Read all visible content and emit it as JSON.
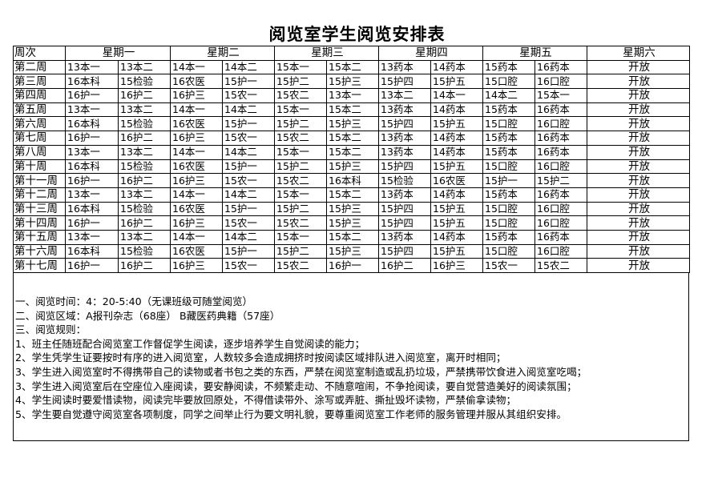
{
  "title": "阅览室学生阅览安排表",
  "header": {
    "week_label": "周次",
    "days": [
      "星期一",
      "星期二",
      "星期三",
      "星期四",
      "星期五",
      "星期六"
    ]
  },
  "rows": [
    {
      "week": "第二周",
      "cells": [
        "13本一",
        "13本二",
        "14本一",
        "14本二",
        "15本一",
        "15本二",
        "13药本",
        "14药本",
        "15药本",
        "16药本"
      ],
      "sat": "开放"
    },
    {
      "week": "第三周",
      "cells": [
        "16本科",
        "15检验",
        "16农医",
        "15护一",
        "15护二",
        "15护三",
        "15护四",
        "15护五",
        "15口腔",
        "16口腔"
      ],
      "sat": "开放"
    },
    {
      "week": "第四周",
      "cells": [
        "16护一",
        "16护二",
        "16护三",
        "15农一",
        "15农二",
        "13本一",
        "13本二",
        "14本一",
        "14本二",
        "15本一"
      ],
      "sat": "开放"
    },
    {
      "week": "第五周",
      "cells": [
        "13本一",
        "13本二",
        "14本一",
        "14本二",
        "15本一",
        "15本二",
        "13药本",
        "14药本",
        "15药本",
        "16药本"
      ],
      "sat": "开放"
    },
    {
      "week": "第六周",
      "cells": [
        "16本科",
        "15检验",
        "16农医",
        "15护一",
        "15护二",
        "15护三",
        "15护四",
        "15护五",
        "15口腔",
        "16口腔"
      ],
      "sat": "开放"
    },
    {
      "week": "第七周",
      "cells": [
        "16护一",
        "16护二",
        "16护三",
        "15农一",
        "15农二",
        "15本二",
        "13药本",
        "14药本",
        "15药本",
        "16药本"
      ],
      "sat": "开放"
    },
    {
      "week": "第八周",
      "cells": [
        "13本一",
        "13本二",
        "14本一",
        "14本二",
        "15本一",
        "15本二",
        "13药本",
        "14药本",
        "15药本",
        "16药本"
      ],
      "sat": "开放"
    },
    {
      "week": "第十周",
      "cells": [
        "16本科",
        "15检验",
        "16农医",
        "15护一",
        "15护二",
        "15护三",
        "15护四",
        "15护五",
        "15口腔",
        "16口腔"
      ],
      "sat": "开放"
    },
    {
      "week": "第十一周",
      "cells": [
        "16护一",
        "16护二",
        "16护三",
        "15农一",
        "15农二",
        "16本科",
        "15检验",
        "16农医",
        "15护一",
        "15护二"
      ],
      "sat": "开放"
    },
    {
      "week": "第十二周",
      "cells": [
        "13本一",
        "13本二",
        "14本一",
        "14本二",
        "15本一",
        "15本二",
        "13药本",
        "14药本",
        "15药本",
        "16药本"
      ],
      "sat": "开放"
    },
    {
      "week": "第十三周",
      "cells": [
        "16本科",
        "15检验",
        "16农医",
        "15护一",
        "15护二",
        "15护三",
        "15护四",
        "15护五",
        "15口腔",
        "16口腔"
      ],
      "sat": "开放"
    },
    {
      "week": "第十四周",
      "cells": [
        "16护一",
        "16护二",
        "16护三",
        "15农一",
        "15农二",
        "15护三",
        "15护四",
        "15护五",
        "15口腔",
        "16口腔"
      ],
      "sat": "开放"
    },
    {
      "week": "第十五周",
      "cells": [
        "13本一",
        "13本二",
        "14本一",
        "14本二",
        "15本一",
        "15本二",
        "13药本",
        "14药本",
        "15药本",
        "16药本"
      ],
      "sat": "开放"
    },
    {
      "week": "第十六周",
      "cells": [
        "16本科",
        "15检验",
        "16农医",
        "15护一",
        "15护二",
        "15护三",
        "15护四",
        "15护五",
        "15口腔",
        "16口腔"
      ],
      "sat": "开放"
    },
    {
      "week": "第十七周",
      "cells": [
        "16护一",
        "16护二",
        "16护三",
        "15农一",
        "15农二",
        "16护一",
        "16护二",
        "16护三",
        "15农一",
        "15农二"
      ],
      "sat": "开放"
    }
  ],
  "notes": [
    "一、阅览时间：4：20-5:40（无课班级可随堂阅览）",
    "二、阅览区域：A报刊杂志（68座） B藏医药典籍（57座）",
    "三、阅览规则：",
    "1、班主任随班配合阅览室工作督促学生阅读，逐步培养学生自觉阅读的能力；",
    "2、学生凭学生证要按时有序的进入阅览室，人数较多会造成拥挤时按阅读区域排队进入阅览室，离开时相同；",
    "3、学生进入阅览室时不得携带自己的读物或者书包之类的东西，严禁在阅览室制造或乱扔垃圾，严禁携带饮食进入阅览室吃喝；",
    "3、学生进入阅览室后在空座位入座阅读，要安静阅读，不频繁走动、不随意喧闹，不争抢阅读，要自觉营造美好的阅读氛围；",
    "4、学生阅读时要爱惜读物，阅读完毕要放回原处，不得借读带外、涂写或弄脏、撕扯毁坏读物，严禁偷拿读物；",
    "5、学生要自觉遵守阅览室各项制度，同学之间举止行为要文明礼貌，要尊重阅览室工作老师的服务管理并服从其组织安排。"
  ]
}
